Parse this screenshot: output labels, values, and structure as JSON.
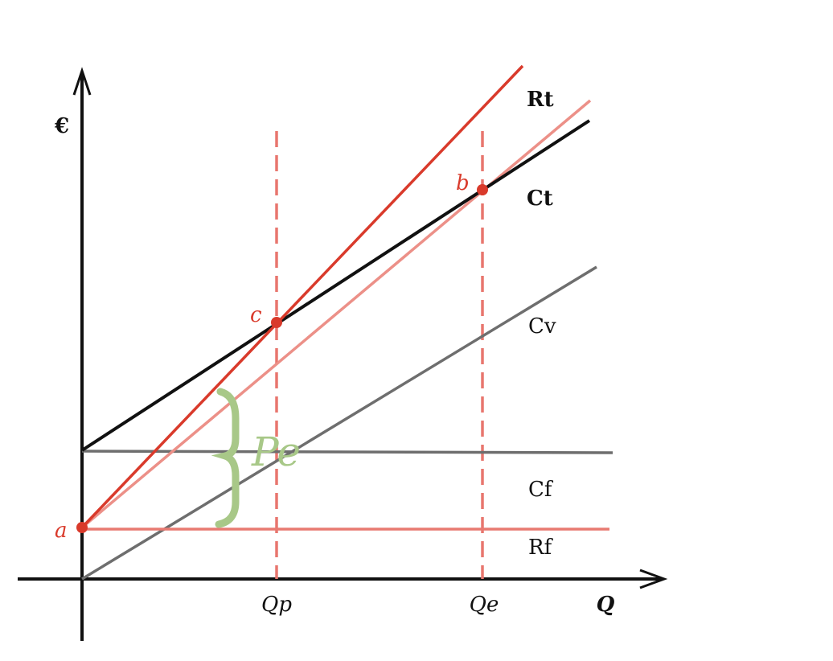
{
  "axes": {
    "y_label": "€",
    "x_label": "Q",
    "x_marks": [
      "Qp",
      "Qe"
    ]
  },
  "curves": {
    "rt": "Rt",
    "ct": "Ct",
    "cv": "Cv",
    "cf": "Cf",
    "rf": "Rf"
  },
  "points": {
    "a": "a",
    "b": "b",
    "c": "c"
  },
  "brace_label": "Pe"
}
